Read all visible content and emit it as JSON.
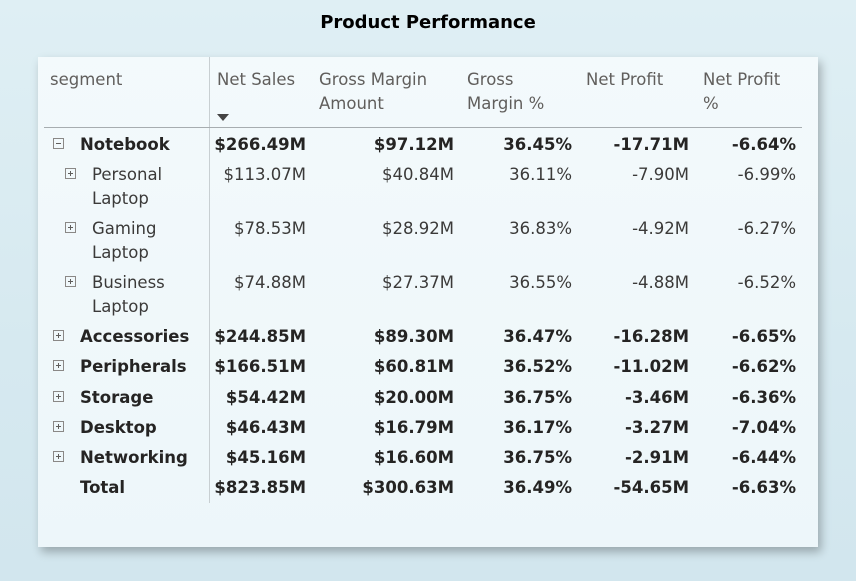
{
  "title": "Product Performance",
  "headers": {
    "segment": "segment",
    "net_sales": "Net Sales",
    "gross_margin_amount_1": "Gross Margin",
    "gross_margin_amount_2": "Amount",
    "gross_margin_pct_1": "Gross",
    "gross_margin_pct_2": "Margin %",
    "net_profit": "Net Profit",
    "net_profit_pct_1": "Net Profit",
    "net_profit_pct_2": "%"
  },
  "rows": [
    {
      "label1": "Notebook",
      "label2": "",
      "level": 0,
      "expander": "minus",
      "bold": true,
      "net_sales": "$266.49M",
      "gma": "$97.12M",
      "gmp": "36.45%",
      "np": "-17.71M",
      "npp": "-6.64%"
    },
    {
      "label1": "Personal",
      "label2": "Laptop",
      "level": 1,
      "expander": "plus",
      "bold": false,
      "net_sales": "$113.07M",
      "gma": "$40.84M",
      "gmp": "36.11%",
      "np": "-7.90M",
      "npp": "-6.99%"
    },
    {
      "label1": "Gaming",
      "label2": "Laptop",
      "level": 1,
      "expander": "plus",
      "bold": false,
      "net_sales": "$78.53M",
      "gma": "$28.92M",
      "gmp": "36.83%",
      "np": "-4.92M",
      "npp": "-6.27%"
    },
    {
      "label1": "Business",
      "label2": "Laptop",
      "level": 1,
      "expander": "plus",
      "bold": false,
      "net_sales": "$74.88M",
      "gma": "$27.37M",
      "gmp": "36.55%",
      "np": "-4.88M",
      "npp": "-6.52%"
    },
    {
      "label1": "Accessories",
      "label2": "",
      "level": 0,
      "expander": "plus",
      "bold": true,
      "net_sales": "$244.85M",
      "gma": "$89.30M",
      "gmp": "36.47%",
      "np": "-16.28M",
      "npp": "-6.65%"
    },
    {
      "label1": "Peripherals",
      "label2": "",
      "level": 0,
      "expander": "plus",
      "bold": true,
      "net_sales": "$166.51M",
      "gma": "$60.81M",
      "gmp": "36.52%",
      "np": "-11.02M",
      "npp": "-6.62%"
    },
    {
      "label1": "Storage",
      "label2": "",
      "level": 0,
      "expander": "plus",
      "bold": true,
      "net_sales": "$54.42M",
      "gma": "$20.00M",
      "gmp": "36.75%",
      "np": "-3.46M",
      "npp": "-6.36%"
    },
    {
      "label1": "Desktop",
      "label2": "",
      "level": 0,
      "expander": "plus",
      "bold": true,
      "net_sales": "$46.43M",
      "gma": "$16.79M",
      "gmp": "36.17%",
      "np": "-3.27M",
      "npp": "-7.04%"
    },
    {
      "label1": "Networking",
      "label2": "",
      "level": 0,
      "expander": "plus",
      "bold": true,
      "net_sales": "$45.16M",
      "gma": "$16.60M",
      "gmp": "36.75%",
      "np": "-2.91M",
      "npp": "-6.44%"
    },
    {
      "label1": "Total",
      "label2": "",
      "level": 0,
      "expander": "none",
      "bold": true,
      "net_sales": "$823.85M",
      "gma": "$300.63M",
      "gmp": "36.49%",
      "np": "-54.65M",
      "npp": "-6.63%"
    }
  ]
}
